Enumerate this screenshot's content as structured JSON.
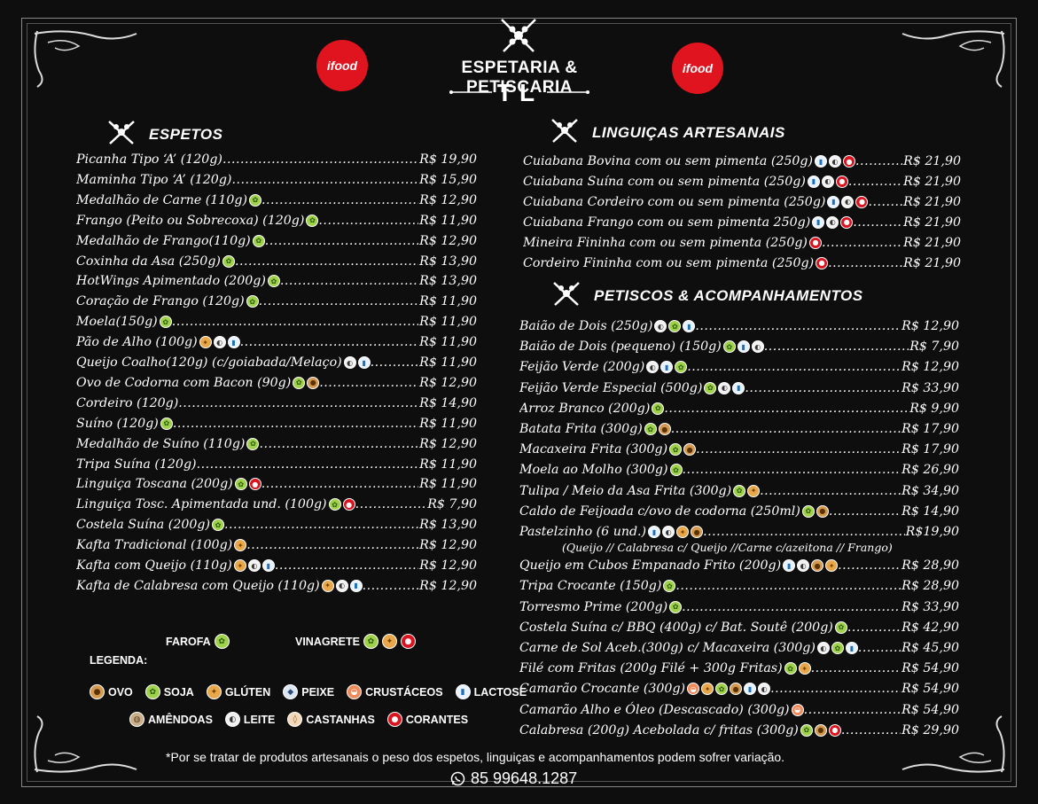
{
  "header": {
    "title": "ESPETARIA & PETISCARIA",
    "subtitle": "TL",
    "ifood_logo_text": "ifood"
  },
  "espetos": {
    "title": "ESPETOS",
    "items": [
      {
        "name": "Picanha Tipo ‘A’ (120g)",
        "icons": [],
        "price": "R$ 19,90"
      },
      {
        "name": "Maminha Tipo ‘A’ (120g)",
        "icons": [],
        "price": "R$ 15,90"
      },
      {
        "name": "Medalhão de Carne (110g)",
        "icons": [
          "soja"
        ],
        "price": "R$ 12,90"
      },
      {
        "name": "Frango (Peito ou Sobrecoxa) (120g)",
        "icons": [
          "soja"
        ],
        "price": "R$ 11,90"
      },
      {
        "name": "Medalhão de Frango(110g)",
        "icons": [
          "soja"
        ],
        "price": "R$ 12,90"
      },
      {
        "name": "Coxinha da Asa (250g)",
        "icons": [
          "soja"
        ],
        "price": "R$ 13,90"
      },
      {
        "name": "HotWings Apimentado (200g)",
        "icons": [
          "soja"
        ],
        "price": "R$ 13,90"
      },
      {
        "name": "Coração de Frango (120g)",
        "icons": [
          "soja"
        ],
        "price": "R$ 11,90"
      },
      {
        "name": "Moela(150g)",
        "icons": [
          "soja"
        ],
        "price": "R$ 11,90"
      },
      {
        "name": "Pão de Alho (100g)",
        "icons": [
          "gluten",
          "leite",
          "lactose"
        ],
        "price": "R$ 11,90"
      },
      {
        "name": "Queijo Coalho(120g) (c/goiabada/Melaço)",
        "icons": [
          "leite",
          "lactose"
        ],
        "price": "R$ 11,90"
      },
      {
        "name": "Ovo de Codorna com Bacon (90g)",
        "icons": [
          "soja",
          "ovo"
        ],
        "price": "R$ 12,90"
      },
      {
        "name": "Cordeiro (120g)",
        "icons": [],
        "price": "R$ 14,90"
      },
      {
        "name": "Suíno (120g)",
        "icons": [
          "soja"
        ],
        "price": "R$ 11,90"
      },
      {
        "name": "Medalhão de Suíno (110g)",
        "icons": [
          "soja"
        ],
        "price": "R$ 12,90"
      },
      {
        "name": "Tripa Suína (120g)",
        "icons": [],
        "price": "R$ 11,90"
      },
      {
        "name": "Linguiça Toscana (200g)",
        "icons": [
          "soja",
          "corante"
        ],
        "price": "R$ 11,90"
      },
      {
        "name": "Linguiça Tosc. Apimentada und. (100g)",
        "icons": [
          "soja",
          "corante"
        ],
        "price": "R$ 7,90"
      },
      {
        "name": "Costela Suína (200g)",
        "icons": [
          "soja"
        ],
        "price": "R$ 13,90"
      },
      {
        "name": "Kafta Tradicional (100g)",
        "icons": [
          "gluten"
        ],
        "price": "R$ 12,90"
      },
      {
        "name": "Kafta com Queijo (110g)",
        "icons": [
          "gluten",
          "leite",
          "lactose"
        ],
        "price": "R$ 12,90"
      },
      {
        "name": "Kafta de Calabresa com Queijo (110g)",
        "icons": [
          "gluten",
          "leite",
          "lactose"
        ],
        "price": "R$ 12,90"
      }
    ]
  },
  "linguicas": {
    "title": "LINGUIÇAS ARTESANAIS",
    "items": [
      {
        "name": "Cuiabana Bovina com ou sem pimenta (250g)",
        "icons": [
          "lactose",
          "leite",
          "corante"
        ],
        "price": "R$ 21,90"
      },
      {
        "name": "Cuiabana Suína com ou sem pimenta (250g)",
        "icons": [
          "lactose",
          "leite",
          "corante"
        ],
        "price": "R$ 21,90"
      },
      {
        "name": "Cuiabana Cordeiro com ou sem pimenta (250g)",
        "icons": [
          "lactose",
          "leite",
          "corante"
        ],
        "price": "R$ 21,90"
      },
      {
        "name": "Cuiabana Frango com ou sem pimenta 250g)",
        "icons": [
          "lactose",
          "leite",
          "corante"
        ],
        "price": "R$ 21,90"
      },
      {
        "name": "Mineira Fininha com ou sem pimenta (250g)",
        "icons": [
          "corante"
        ],
        "price": "R$ 21,90"
      },
      {
        "name": "Cordeiro Fininha com ou sem pimenta (250g)",
        "icons": [
          "corante"
        ],
        "price": "R$ 21,90"
      }
    ]
  },
  "petiscos": {
    "title": "PETISCOS & ACOMPANHAMENTOS",
    "items": [
      {
        "name": "Baião de Dois (250g)",
        "icons": [
          "leite",
          "soja",
          "lactose"
        ],
        "price": "R$ 12,90"
      },
      {
        "name": "Baião de Dois (pequeno) (150g)",
        "icons": [
          "soja",
          "lactose",
          "leite"
        ],
        "price": "R$  7,90"
      },
      {
        "name": "Feijão Verde (200g)",
        "icons": [
          "leite",
          "lactose",
          "soja"
        ],
        "price": "R$ 12,90"
      },
      {
        "name": "Feijão Verde Especial (500g)",
        "icons": [
          "soja",
          "leite",
          "lactose"
        ],
        "price": "R$ 33,90"
      },
      {
        "name": "Arroz Branco  (200g)",
        "icons": [
          "soja"
        ],
        "price": "R$  9,90"
      },
      {
        "name": "Batata Frita  (300g)",
        "icons": [
          "soja",
          "ovo"
        ],
        "price": "R$ 17,90"
      },
      {
        "name": "Macaxeira Frita (300g)",
        "icons": [
          "soja",
          "ovo"
        ],
        "price": "R$ 17,90"
      },
      {
        "name": "Moela ao Molho (300g)",
        "icons": [
          "soja"
        ],
        "price": "R$ 26,90"
      },
      {
        "name": "Tulipa / Meio da Asa Frita (300g)",
        "icons": [
          "soja",
          "gluten"
        ],
        "price": "R$ 34,90"
      },
      {
        "name": "Caldo de Feijoada c/ovo de codorna (250ml)",
        "icons": [
          "soja",
          "ovo"
        ],
        "price": "R$ 14,90"
      },
      {
        "name": "Pastelzinho (6 und.)",
        "icons": [
          "lactose",
          "leite",
          "gluten",
          "ovo"
        ],
        "price": "R$19,90"
      },
      {
        "name": "Queijo em Cubos Empanado Frito (200g)",
        "icons": [
          "lactose",
          "leite",
          "ovo",
          "gluten"
        ],
        "price": "R$ 28,90"
      },
      {
        "name": "Tripa Crocante (150g)",
        "icons": [
          "soja"
        ],
        "price": "R$ 28,90"
      },
      {
        "name": "Torresmo Prime (200g)",
        "icons": [
          "soja"
        ],
        "price": "R$ 33,90"
      },
      {
        "name": "Costela Suína c/ BBQ (400g) c/ Bat. Soutê (200g)",
        "icons": [
          "soja"
        ],
        "price": "R$ 42,90"
      },
      {
        "name": "Carne de Sol Aceb.(300g) c/ Macaxeira (300g)",
        "icons": [
          "leite",
          "soja",
          "lactose"
        ],
        "price": "R$ 45,90"
      },
      {
        "name": "Filé com Fritas (200g Filé + 300g Fritas)",
        "icons": [
          "soja",
          "gluten"
        ],
        "price": "R$ 54,90"
      },
      {
        "name": "Camarão Crocante (300g)",
        "icons": [
          "crust",
          "gluten",
          "soja",
          "ovo",
          "lactose",
          "leite"
        ],
        "price": "R$ 54,90"
      },
      {
        "name": "Camarão Alho e Óleo (Descascado) (300g)",
        "icons": [
          "crust"
        ],
        "price": "R$ 54,90"
      },
      {
        "name": "Calabresa (200g) Acebolada c/ fritas (300g)",
        "icons": [
          "soja",
          "ovo",
          "corante"
        ],
        "price": "R$ 29,90"
      }
    ],
    "pastel_note": "(Queijo   // Calabresa c/ Queijo //Carne c/azeitona   // Frango)"
  },
  "legend": {
    "title": "LEGENDA:",
    "farofa_label": "FAROFA",
    "vinagrete_label": "VINAGRETE",
    "entries": [
      {
        "key": "ovo",
        "label": "OVO"
      },
      {
        "key": "soja",
        "label": "SOJA"
      },
      {
        "key": "gluten",
        "label": "GLÚTEN"
      },
      {
        "key": "peixe",
        "label": "PEIXE"
      },
      {
        "key": "crust",
        "label": "CRUSTÁCEOS"
      },
      {
        "key": "lactose",
        "label": "LACTOSE"
      },
      {
        "key": "amend",
        "label": "AMÊNDOAS"
      },
      {
        "key": "leite",
        "label": "LEITE"
      },
      {
        "key": "cast",
        "label": "CASTANHAS"
      },
      {
        "key": "corante",
        "label": "CORANTES"
      }
    ]
  },
  "icon_glyphs": {
    "soja": "✿",
    "gluten": "✦",
    "ovo": "●",
    "lactose": "▮",
    "leite": "◐",
    "corante": "●",
    "crust": "◒",
    "peixe": "◆",
    "amend": "◍",
    "cast": "◊"
  },
  "colors": {
    "background": "#0e0e0e",
    "text": "#ffffff",
    "ifood_red": "#e0141e"
  },
  "footer": {
    "disclaimer": "*Por se tratar de produtos artesanais o peso dos espetos, linguiças e acompanhamentos  podem sofrer variação.",
    "phone": "85 99648.1287"
  }
}
